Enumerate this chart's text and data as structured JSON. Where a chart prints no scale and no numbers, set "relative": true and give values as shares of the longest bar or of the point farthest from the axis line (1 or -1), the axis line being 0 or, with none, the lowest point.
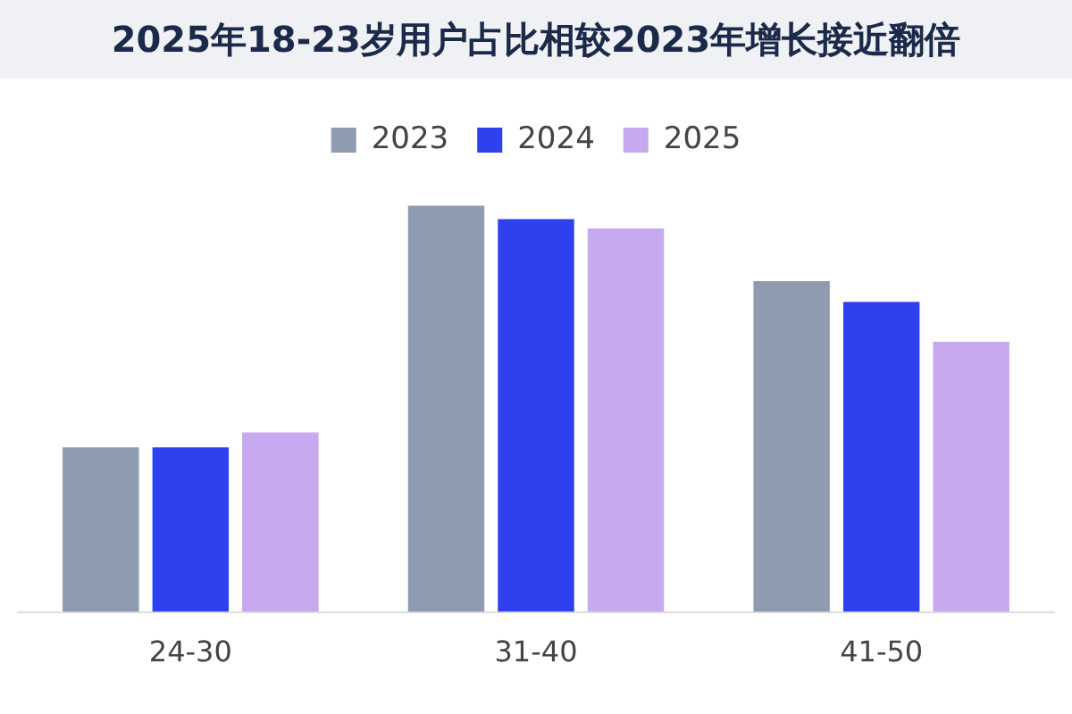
{
  "chart_data": {
    "type": "bar",
    "title": "2025年18-23岁用户占比相较2023年增长接近翻倍",
    "categories": [
      "24-30",
      "31-40",
      "41-50"
    ],
    "relative": true,
    "legend": "top",
    "grid": false,
    "series": [
      {
        "name": "2023",
        "color": "#8e9bb0",
        "values": [
          0.405,
          1,
          0.814
        ]
      },
      {
        "name": "2024",
        "color": "#2f40ee",
        "values": [
          0.405,
          0.967,
          0.763
        ]
      },
      {
        "name": "2025",
        "color": "#c6a9ee",
        "values": [
          0.442,
          0.944,
          0.665
        ]
      }
    ]
  }
}
